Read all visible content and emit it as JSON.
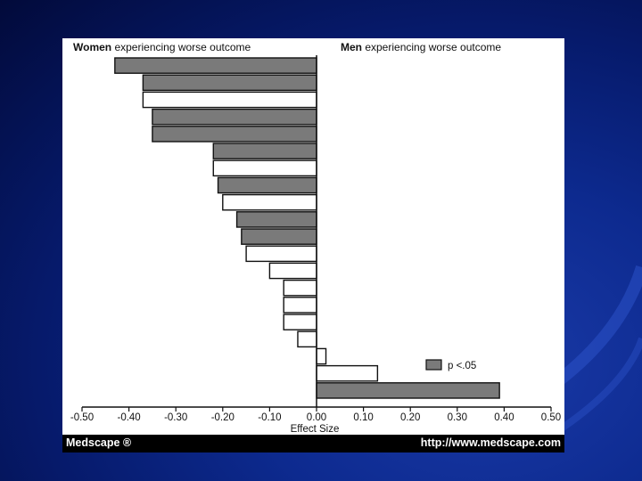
{
  "footer": {
    "brand": "Medscape ®",
    "url": "http://www.medscape.com"
  },
  "chart_data": {
    "type": "bar",
    "orientation": "horizontal",
    "left_header_bold": "Women",
    "left_header_rest": " experiencing worse outcome",
    "right_header_bold": "Men",
    "right_header_rest": " experiencing worse outcome",
    "xlabel": "Effect Size",
    "xlim": [
      -0.5,
      0.5
    ],
    "xticks": [
      "-0.50",
      "-0.40",
      "-0.30",
      "-0.20",
      "-0.10",
      "0.00",
      "0.10",
      "0.20",
      "0.30",
      "0.40",
      "0.50"
    ],
    "legend_label": "p <.05",
    "legend_placement": "lower-right",
    "values": [
      -0.43,
      -0.37,
      -0.37,
      -0.35,
      -0.35,
      -0.22,
      -0.22,
      -0.21,
      -0.2,
      -0.17,
      -0.16,
      -0.15,
      -0.1,
      -0.07,
      -0.07,
      -0.07,
      -0.04,
      0.02,
      0.13,
      0.39
    ],
    "significant": [
      true,
      true,
      false,
      true,
      true,
      true,
      false,
      true,
      false,
      true,
      true,
      false,
      false,
      false,
      false,
      false,
      false,
      false,
      false,
      true
    ],
    "colors": {
      "significant": "#7a7a7a",
      "nonsignificant": "#ffffff",
      "stroke": "#111111"
    }
  }
}
